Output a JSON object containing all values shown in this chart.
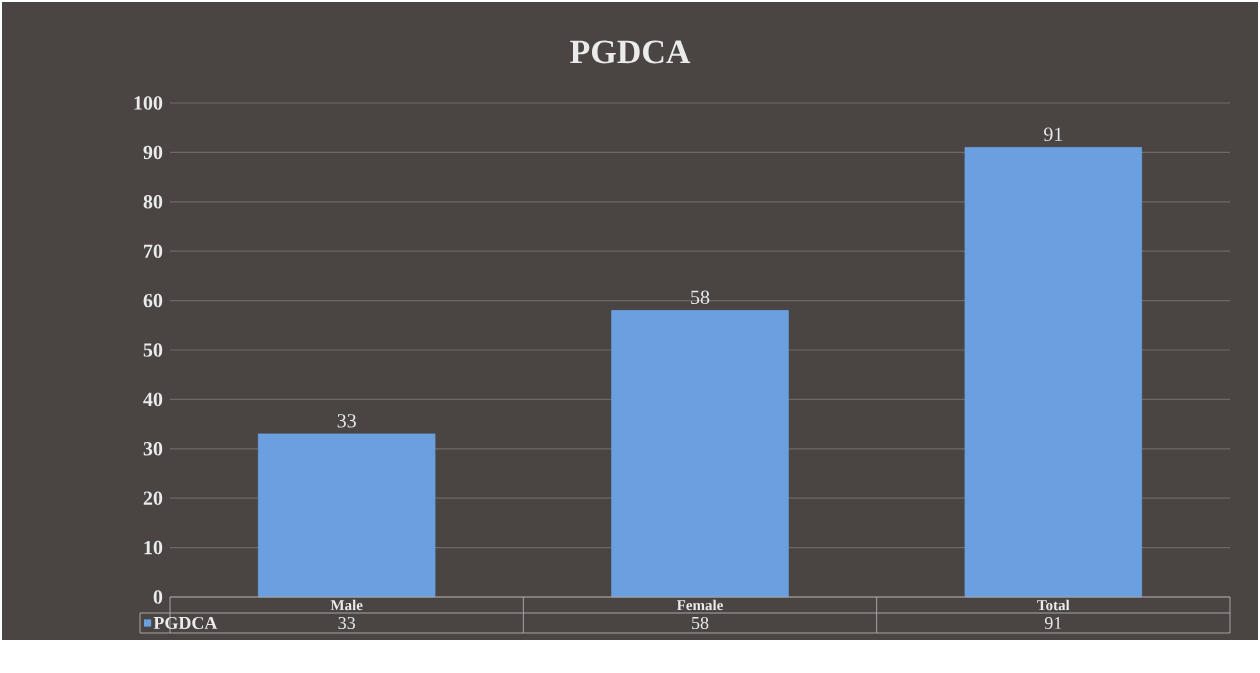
{
  "chart_data": {
    "type": "bar",
    "title": "PGDCA",
    "categories": [
      "Male",
      "Female",
      "Total"
    ],
    "series": [
      {
        "name": "PGDCA",
        "color": "#6a9fe0",
        "values": [
          33,
          58,
          91
        ],
        "value_labels": [
          "33",
          "58",
          "91"
        ]
      }
    ],
    "annotations": [
      "33",
      "58",
      "91"
    ],
    "ylim": [
      0,
      100
    ],
    "yticks": [
      0,
      10,
      20,
      30,
      40,
      50,
      60,
      70,
      80,
      90,
      100
    ],
    "grid": "y",
    "data_labels": true,
    "legend": "bottom"
  }
}
